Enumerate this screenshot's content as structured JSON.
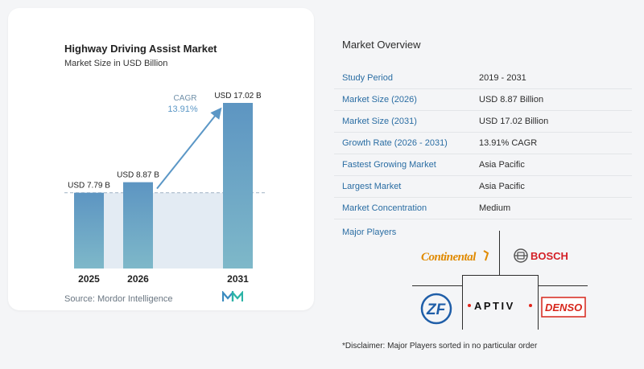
{
  "chart_data": {
    "type": "bar",
    "title": "Highway Driving Assist Market",
    "subtitle": "Market Size in USD Billion",
    "categories": [
      "2025",
      "2026",
      "2031"
    ],
    "values": [
      7.79,
      8.87,
      17.02
    ],
    "value_labels": [
      "USD 7.79 B",
      "USD 8.87 B",
      "USD 17.02 B"
    ],
    "ylim": [
      0,
      17.02
    ],
    "cagr_label": "CAGR",
    "cagr_value": "13.91%",
    "colors": {
      "bar": "#5a93c0",
      "bar_top": "#4b86b5",
      "shade": "#e3ebf3",
      "arrow": "#5b97c6"
    }
  },
  "source": "Source: Mordor Intelligence",
  "overview": {
    "title": "Market Overview",
    "rows": [
      {
        "label": "Study Period",
        "value": "2019 - 2031"
      },
      {
        "label": "Market Size (2026)",
        "value": "USD 8.87 Billion"
      },
      {
        "label": "Market Size (2031)",
        "value": "USD 17.02 Billion"
      },
      {
        "label": "Growth Rate (2026 - 2031)",
        "value": "13.91% CAGR"
      },
      {
        "label": "Fastest Growing Market",
        "value": "Asia Pacific"
      },
      {
        "label": "Largest Market",
        "value": "Asia Pacific"
      },
      {
        "label": "Market Concentration",
        "value": "Medium"
      }
    ]
  },
  "players": {
    "title": "Major Players",
    "logos": [
      "Continental",
      "BOSCH",
      "ZF",
      "APTIV",
      "DENSO"
    ],
    "aptiv_text": "APTIV",
    "denso_text": "DENSO"
  },
  "disclaimer": "*Disclaimer: Major Players sorted in no particular order",
  "accent_color": "#2a6da3"
}
